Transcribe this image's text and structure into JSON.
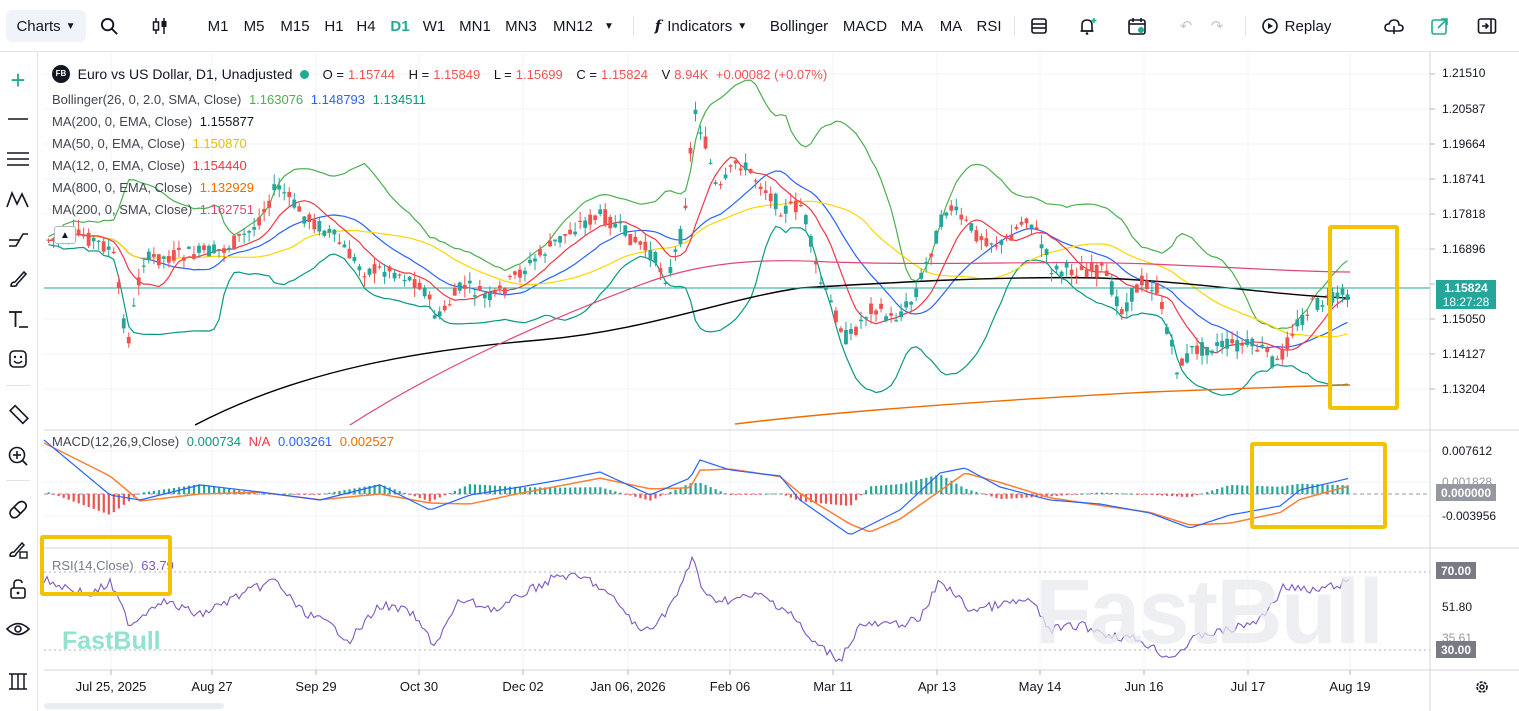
{
  "toolbar": {
    "charts_label": "Charts",
    "timeframes": [
      "M1",
      "M5",
      "M15",
      "H1",
      "H4",
      "D1",
      "W1",
      "MN1",
      "MN3",
      "MN12"
    ],
    "selected_timeframe": "D1",
    "indicators_label": "Indicators",
    "quick_indicators": [
      "Bollinger",
      "MACD",
      "MA",
      "MA",
      "RSI"
    ],
    "replay_label": "Replay"
  },
  "symbol": {
    "badge": "FB",
    "title": "Euro vs US Dollar, D1, Unadjusted",
    "open_label": "O =",
    "open": "1.15744",
    "high_label": "H =",
    "high": "1.15849",
    "low_label": "L =",
    "low": "1.15699",
    "close_label": "C =",
    "close": "1.15824",
    "volume_label": "V",
    "volume": "8.94K",
    "change": "+0.00082 (+0.07%)"
  },
  "indicators": {
    "bollinger": {
      "label": "Bollinger(26, 0, 2.0, SMA, Close)",
      "upper": "1.163076",
      "mid": "1.148793",
      "lower": "1.134511"
    },
    "ma200ema": {
      "label": "MA(200, 0, EMA, Close)",
      "value": "1.155877"
    },
    "ma50ema": {
      "label": "MA(50, 0, EMA, Close)",
      "value": "1.150870"
    },
    "ma12ema": {
      "label": "MA(12, 0, EMA, Close)",
      "value": "1.154440"
    },
    "ma800ema": {
      "label": "MA(800, 0, EMA, Close)",
      "value": "1.132929"
    },
    "ma200sma": {
      "label": "MA(200, 0, SMA, Close)",
      "value": "1.162751"
    },
    "macd": {
      "label": "MACD(12,26,9,Close)",
      "v1": "0.000734",
      "v2": "N/A",
      "v3": "0.003261",
      "v4": "0.002527"
    },
    "rsi": {
      "label": "RSI(14,Close)",
      "value": "63.79"
    }
  },
  "price_axis": {
    "labels": [
      "1.21510",
      "1.20587",
      "1.19664",
      "1.18741",
      "1.17818",
      "1.16896",
      "1.15050",
      "1.14127",
      "1.13204"
    ],
    "current_price": "1.15824",
    "countdown": "18:27:28"
  },
  "macd_axis": {
    "labels": [
      "0.007612",
      "0.001828",
      "-0.003956"
    ],
    "current": "0.000000"
  },
  "rsi_axis": {
    "labels": [
      "51.80",
      "35.61"
    ],
    "upper_pill": "70.00",
    "lower_pill": "30.00"
  },
  "time_axis": {
    "labels": [
      "Jul 25, 2025",
      "Aug 27",
      "Sep 29",
      "Oct 30",
      "Dec 02",
      "Jan 06, 2026",
      "Feb 06",
      "Mar 11",
      "Apr 13",
      "May 14",
      "Jun 16",
      "Jul 17",
      "Aug 19"
    ]
  },
  "branding": {
    "logo": "FastBull",
    "watermark": "FastBull"
  },
  "colors": {
    "up": "#26a69a",
    "down": "#ef5350",
    "accent": "#22ab94",
    "boll": "#4caf50",
    "mid": "#2962ff",
    "ma200ema": "#000000",
    "ma50ema": "#ffd600",
    "ma12ema": "#f23645",
    "ma800ema": "#ef6c00",
    "ma200sma": "#e04675",
    "macd": "#2962ff",
    "signal": "#ff7f33",
    "rsi": "#7e57c2",
    "highlight": "#f3c200"
  }
}
